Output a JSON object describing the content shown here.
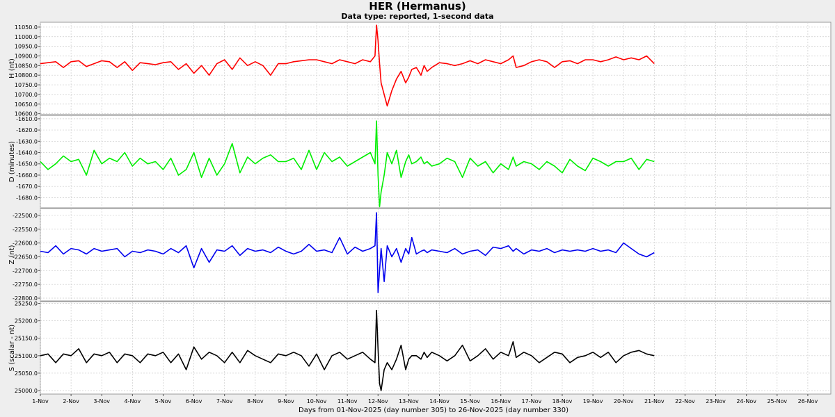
{
  "chart_data": {
    "type": "line",
    "title": "HER (Hermanus)",
    "subtitle": "Data type: reported, 1-second data",
    "xlabel": "Days from 01-Nov-2025 (day number 305) to 26-Nov-2025 (day number 330)",
    "x_ticks": [
      "1-Nov",
      "2-Nov",
      "3-Nov",
      "4-Nov",
      "5-Nov",
      "6-Nov",
      "7-Nov",
      "8-Nov",
      "9-Nov",
      "10-Nov",
      "11-Nov",
      "12-Nov",
      "13-Nov",
      "14-Nov",
      "15-Nov",
      "16-Nov",
      "17-Nov",
      "18-Nov",
      "19-Nov",
      "20-Nov",
      "21-Nov",
      "22-Nov",
      "23-Nov",
      "24-Nov",
      "25-Nov",
      "26-Nov"
    ],
    "xlim": [
      1,
      26.75
    ],
    "grid": true,
    "panels": [
      {
        "ylabel": "H (nt)",
        "color": "#ff0000",
        "ylim": [
          10595,
          11075
        ],
        "y_ticks": [
          "10600.0",
          "10650.0",
          "10700.0",
          "10750.0",
          "10800.0",
          "10850.0",
          "10900.0",
          "10950.0",
          "11000.0",
          "11050.0"
        ],
        "series": {
          "x": [
            1.0,
            1.25,
            1.5,
            1.75,
            2.0,
            2.25,
            2.5,
            2.75,
            3.0,
            3.25,
            3.5,
            3.75,
            4.0,
            4.25,
            4.5,
            4.75,
            5.0,
            5.25,
            5.5,
            5.75,
            6.0,
            6.25,
            6.5,
            6.75,
            7.0,
            7.25,
            7.5,
            7.75,
            8.0,
            8.25,
            8.5,
            8.75,
            9.0,
            9.25,
            9.5,
            9.75,
            10.0,
            10.25,
            10.5,
            10.75,
            11.0,
            11.25,
            11.5,
            11.75,
            11.9,
            11.95,
            12.0,
            12.05,
            12.1,
            12.2,
            12.3,
            12.45,
            12.6,
            12.75,
            12.9,
            13.0,
            13.1,
            13.25,
            13.4,
            13.5,
            13.6,
            13.75,
            14.0,
            14.25,
            14.5,
            14.75,
            15.0,
            15.25,
            15.5,
            15.75,
            16.0,
            16.25,
            16.4,
            16.5,
            16.75,
            17.0,
            17.25,
            17.5,
            17.75,
            18.0,
            18.25,
            18.5,
            18.75,
            19.0,
            19.25,
            19.5,
            19.75,
            20.0,
            20.25,
            20.5,
            20.75,
            21.0
          ],
          "values": [
            10860,
            10865,
            10870,
            10840,
            10870,
            10875,
            10845,
            10860,
            10875,
            10870,
            10840,
            10870,
            10825,
            10865,
            10860,
            10855,
            10865,
            10870,
            10830,
            10860,
            10810,
            10850,
            10800,
            10860,
            10880,
            10830,
            10890,
            10850,
            10870,
            10850,
            10800,
            10860,
            10860,
            10870,
            10875,
            10880,
            10880,
            10870,
            10860,
            10880,
            10870,
            10860,
            10880,
            10870,
            10900,
            11060,
            10980,
            10860,
            10760,
            10700,
            10640,
            10720,
            10780,
            10820,
            10760,
            10790,
            10830,
            10840,
            10800,
            10850,
            10820,
            10840,
            10865,
            10860,
            10850,
            10860,
            10875,
            10860,
            10880,
            10870,
            10860,
            10880,
            10900,
            10840,
            10850,
            10870,
            10880,
            10870,
            10840,
            10870,
            10875,
            10860,
            10880,
            10880,
            10870,
            10880,
            10895,
            10880,
            10890,
            10880,
            10900,
            10860
          ]
        }
      },
      {
        "ylabel": "D (minutes)",
        "color": "#00ee00",
        "ylim": [
          -1689,
          -1607
        ],
        "y_ticks": [
          "-1680.0",
          "-1670.0",
          "-1660.0",
          "-1650.0",
          "-1640.0",
          "-1630.0",
          "-1620.0",
          "-1610.0"
        ],
        "series": {
          "x": [
            1.0,
            1.25,
            1.5,
            1.75,
            2.0,
            2.25,
            2.5,
            2.75,
            3.0,
            3.25,
            3.5,
            3.75,
            4.0,
            4.25,
            4.5,
            4.75,
            5.0,
            5.25,
            5.5,
            5.75,
            6.0,
            6.25,
            6.5,
            6.75,
            7.0,
            7.25,
            7.5,
            7.75,
            8.0,
            8.25,
            8.5,
            8.75,
            9.0,
            9.25,
            9.5,
            9.75,
            10.0,
            10.25,
            10.5,
            10.75,
            11.0,
            11.25,
            11.5,
            11.75,
            11.9,
            11.95,
            12.0,
            12.05,
            12.1,
            12.2,
            12.3,
            12.45,
            12.6,
            12.75,
            12.9,
            13.0,
            13.1,
            13.25,
            13.4,
            13.5,
            13.6,
            13.75,
            14.0,
            14.25,
            14.5,
            14.75,
            15.0,
            15.25,
            15.5,
            15.75,
            16.0,
            16.25,
            16.4,
            16.5,
            16.75,
            17.0,
            17.25,
            17.5,
            17.75,
            18.0,
            18.25,
            18.5,
            18.75,
            19.0,
            19.25,
            19.5,
            19.75,
            20.0,
            20.25,
            20.5,
            20.75,
            21.0
          ],
          "values": [
            -1648,
            -1655,
            -1650,
            -1643,
            -1648,
            -1646,
            -1660,
            -1638,
            -1650,
            -1645,
            -1648,
            -1640,
            -1652,
            -1645,
            -1650,
            -1648,
            -1655,
            -1645,
            -1660,
            -1655,
            -1640,
            -1662,
            -1645,
            -1660,
            -1650,
            -1632,
            -1658,
            -1644,
            -1650,
            -1645,
            -1642,
            -1648,
            -1648,
            -1645,
            -1655,
            -1638,
            -1655,
            -1640,
            -1648,
            -1644,
            -1652,
            -1648,
            -1644,
            -1640,
            -1650,
            -1612,
            -1660,
            -1688,
            -1675,
            -1660,
            -1640,
            -1650,
            -1638,
            -1662,
            -1648,
            -1642,
            -1650,
            -1648,
            -1644,
            -1650,
            -1648,
            -1652,
            -1650,
            -1645,
            -1648,
            -1662,
            -1645,
            -1652,
            -1648,
            -1658,
            -1650,
            -1655,
            -1644,
            -1652,
            -1648,
            -1650,
            -1655,
            -1648,
            -1652,
            -1658,
            -1646,
            -1652,
            -1656,
            -1645,
            -1648,
            -1652,
            -1648,
            -1648,
            -1645,
            -1655,
            -1646,
            -1648
          ]
        }
      },
      {
        "ylabel": "Z (nt)",
        "color": "#0000ee",
        "ylim": [
          -22810,
          -22475
        ],
        "y_ticks": [
          "-22800.0",
          "-22750.0",
          "-22700.0",
          "-22650.0",
          "-22600.0",
          "-22550.0",
          "-22500.0"
        ],
        "series": {
          "x": [
            1.0,
            1.25,
            1.5,
            1.75,
            2.0,
            2.25,
            2.5,
            2.75,
            3.0,
            3.25,
            3.5,
            3.75,
            4.0,
            4.25,
            4.5,
            4.75,
            5.0,
            5.25,
            5.5,
            5.75,
            6.0,
            6.25,
            6.5,
            6.75,
            7.0,
            7.25,
            7.5,
            7.75,
            8.0,
            8.25,
            8.5,
            8.75,
            9.0,
            9.25,
            9.5,
            9.75,
            10.0,
            10.25,
            10.5,
            10.75,
            11.0,
            11.25,
            11.5,
            11.75,
            11.9,
            11.95,
            12.0,
            12.05,
            12.1,
            12.2,
            12.3,
            12.45,
            12.6,
            12.75,
            12.9,
            13.0,
            13.1,
            13.25,
            13.4,
            13.5,
            13.6,
            13.75,
            14.0,
            14.25,
            14.5,
            14.75,
            15.0,
            15.25,
            15.5,
            15.75,
            16.0,
            16.25,
            16.4,
            16.5,
            16.75,
            17.0,
            17.25,
            17.5,
            17.75,
            18.0,
            18.25,
            18.5,
            18.75,
            19.0,
            19.25,
            19.5,
            19.75,
            20.0,
            20.25,
            20.5,
            20.75,
            21.0
          ],
          "values": [
            -22630,
            -22635,
            -22610,
            -22640,
            -22620,
            -22625,
            -22640,
            -22620,
            -22630,
            -22625,
            -22620,
            -22650,
            -22630,
            -22635,
            -22625,
            -22630,
            -22640,
            -22620,
            -22635,
            -22610,
            -22690,
            -22620,
            -22670,
            -22625,
            -22630,
            -22610,
            -22645,
            -22620,
            -22630,
            -22625,
            -22635,
            -22615,
            -22630,
            -22640,
            -22630,
            -22605,
            -22630,
            -22625,
            -22635,
            -22580,
            -22640,
            -22615,
            -22630,
            -22620,
            -22610,
            -22490,
            -22780,
            -22700,
            -22620,
            -22740,
            -22610,
            -22650,
            -22620,
            -22670,
            -22620,
            -22640,
            -22580,
            -22640,
            -22630,
            -22625,
            -22635,
            -22625,
            -22630,
            -22635,
            -22620,
            -22640,
            -22630,
            -22625,
            -22645,
            -22615,
            -22620,
            -22610,
            -22630,
            -22620,
            -22640,
            -22625,
            -22630,
            -22620,
            -22635,
            -22625,
            -22630,
            -22625,
            -22630,
            -22620,
            -22630,
            -22625,
            -22635,
            -22600,
            -22620,
            -22640,
            -22650,
            -22635
          ]
        }
      },
      {
        "ylabel": "S (scalar - nt)",
        "color": "#000000",
        "ylim": [
          24990,
          25255
        ],
        "y_ticks": [
          "25000.0",
          "25050.0",
          "25100.0",
          "25150.0",
          "25200.0",
          "25250.0"
        ],
        "series": {
          "x": [
            1.0,
            1.25,
            1.5,
            1.75,
            2.0,
            2.25,
            2.5,
            2.75,
            3.0,
            3.25,
            3.5,
            3.75,
            4.0,
            4.25,
            4.5,
            4.75,
            5.0,
            5.25,
            5.5,
            5.75,
            6.0,
            6.25,
            6.5,
            6.75,
            7.0,
            7.25,
            7.5,
            7.75,
            8.0,
            8.25,
            8.5,
            8.75,
            9.0,
            9.25,
            9.5,
            9.75,
            10.0,
            10.25,
            10.5,
            10.75,
            11.0,
            11.25,
            11.5,
            11.75,
            11.9,
            11.95,
            12.0,
            12.05,
            12.1,
            12.2,
            12.3,
            12.45,
            12.6,
            12.75,
            12.9,
            13.0,
            13.1,
            13.25,
            13.4,
            13.5,
            13.6,
            13.75,
            14.0,
            14.25,
            14.5,
            14.75,
            15.0,
            15.25,
            15.5,
            15.75,
            16.0,
            16.25,
            16.4,
            16.5,
            16.75,
            17.0,
            17.25,
            17.5,
            17.75,
            18.0,
            18.25,
            18.5,
            18.75,
            19.0,
            19.25,
            19.5,
            19.75,
            20.0,
            20.25,
            20.5,
            20.75,
            21.0
          ],
          "values": [
            25100,
            25105,
            25080,
            25105,
            25100,
            25120,
            25080,
            25105,
            25100,
            25110,
            25080,
            25105,
            25100,
            25080,
            25105,
            25100,
            25110,
            25080,
            25105,
            25060,
            25125,
            25090,
            25110,
            25100,
            25080,
            25110,
            25080,
            25115,
            25100,
            25090,
            25080,
            25105,
            25100,
            25110,
            25100,
            25070,
            25105,
            25060,
            25100,
            25110,
            25090,
            25100,
            25110,
            25090,
            25080,
            25230,
            25120,
            25020,
            25000,
            25060,
            25080,
            25060,
            25090,
            25130,
            25060,
            25090,
            25100,
            25100,
            25090,
            25110,
            25095,
            25110,
            25100,
            25085,
            25100,
            25130,
            25085,
            25100,
            25120,
            25090,
            25110,
            25100,
            25140,
            25095,
            25110,
            25100,
            25080,
            25095,
            25110,
            25105,
            25080,
            25095,
            25100,
            25110,
            25095,
            25110,
            25080,
            25100,
            25110,
            25115,
            25105,
            25100
          ]
        }
      }
    ]
  }
}
